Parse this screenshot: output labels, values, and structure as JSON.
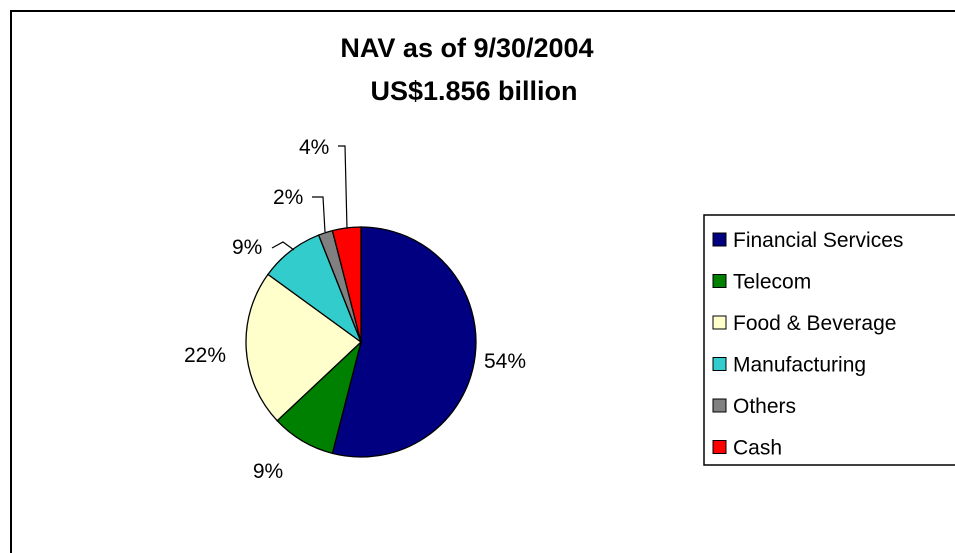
{
  "chart_data": {
    "type": "pie",
    "title": "NAV as of 9/30/2004",
    "subtitle": "US$1.856 billion",
    "categories": [
      "Financial Services",
      "Telecom",
      "Food & Beverage",
      "Manufacturing",
      "Others",
      "Cash"
    ],
    "values": [
      54,
      9,
      22,
      9,
      2,
      4
    ],
    "labels": [
      "54%",
      "9%",
      "22%",
      "9%",
      "2%",
      "4%"
    ],
    "colors": [
      "#000080",
      "#008000",
      "#FFFFCC",
      "#33CCCC",
      "#808080",
      "#FF0000"
    ],
    "legend_position": "right"
  }
}
